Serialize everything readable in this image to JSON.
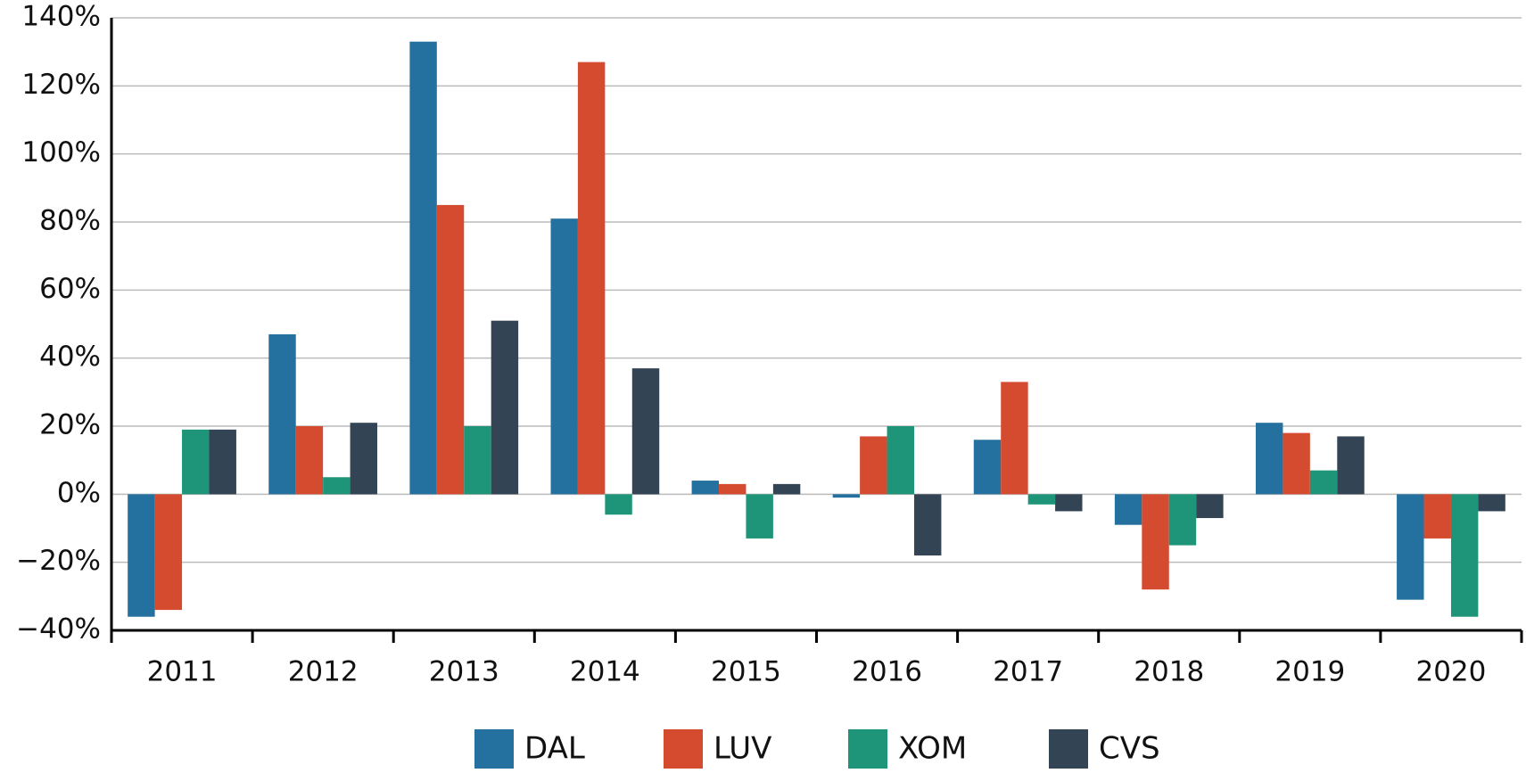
{
  "chart_data": {
    "type": "bar",
    "categories": [
      "2011",
      "2012",
      "2013",
      "2014",
      "2015",
      "2016",
      "2017",
      "2018",
      "2019",
      "2020"
    ],
    "series": [
      {
        "name": "DAL",
        "color": "#2471a0",
        "values": [
          -36,
          47,
          133,
          81,
          4,
          -1,
          16,
          -9,
          21,
          -31
        ]
      },
      {
        "name": "LUV",
        "color": "#d44b30",
        "values": [
          -34,
          20,
          85,
          127,
          3,
          17,
          33,
          -28,
          18,
          -13
        ]
      },
      {
        "name": "XOM",
        "color": "#1e9578",
        "values": [
          19,
          5,
          20,
          -6,
          -13,
          20,
          -3,
          -15,
          7,
          -36
        ]
      },
      {
        "name": "CVS",
        "color": "#334455",
        "values": [
          19,
          21,
          51,
          37,
          3,
          -18,
          -5,
          -7,
          17,
          -5
        ]
      }
    ],
    "ylim": [
      -40,
      140
    ],
    "yticks": [
      {
        "value": -40,
        "label": "−40%"
      },
      {
        "value": -20,
        "label": "−20%"
      },
      {
        "value": 0,
        "label": "0%"
      },
      {
        "value": 20,
        "label": "20%"
      },
      {
        "value": 40,
        "label": "40%"
      },
      {
        "value": 60,
        "label": "60%"
      },
      {
        "value": 80,
        "label": "80%"
      },
      {
        "value": 100,
        "label": "100%"
      },
      {
        "value": 120,
        "label": "120%"
      },
      {
        "value": 140,
        "label": "140%"
      }
    ],
    "grid": true,
    "legend": "bottom"
  }
}
